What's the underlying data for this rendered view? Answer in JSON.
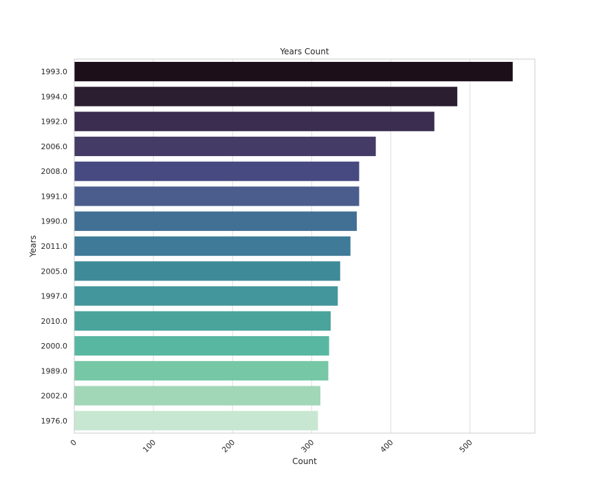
{
  "chart_data": {
    "type": "bar",
    "orientation": "horizontal",
    "title": "Years Count",
    "xlabel": "Count",
    "ylabel": "Years",
    "categories": [
      "1993.0",
      "1994.0",
      "1992.0",
      "2006.0",
      "2008.0",
      "1991.0",
      "1990.0",
      "2011.0",
      "2005.0",
      "1997.0",
      "2010.0",
      "2000.0",
      "1989.0",
      "2002.0",
      "1976.0"
    ],
    "values": [
      554,
      484,
      455,
      381,
      360,
      360,
      357,
      349,
      336,
      333,
      324,
      322,
      321,
      311,
      308
    ],
    "xlim": [
      0,
      582
    ],
    "xticks": [
      0,
      100,
      200,
      300,
      400,
      500
    ],
    "grid": true,
    "colors": [
      "#1c0f1a",
      "#2c1e31",
      "#3a2d4f",
      "#443c66",
      "#474a80",
      "#4b5d8c",
      "#426f94",
      "#3f7b99",
      "#3f8a99",
      "#43969b",
      "#4aa49c",
      "#58b7a0",
      "#76c7a6",
      "#a1d7b7",
      "#c8e7d2"
    ]
  }
}
